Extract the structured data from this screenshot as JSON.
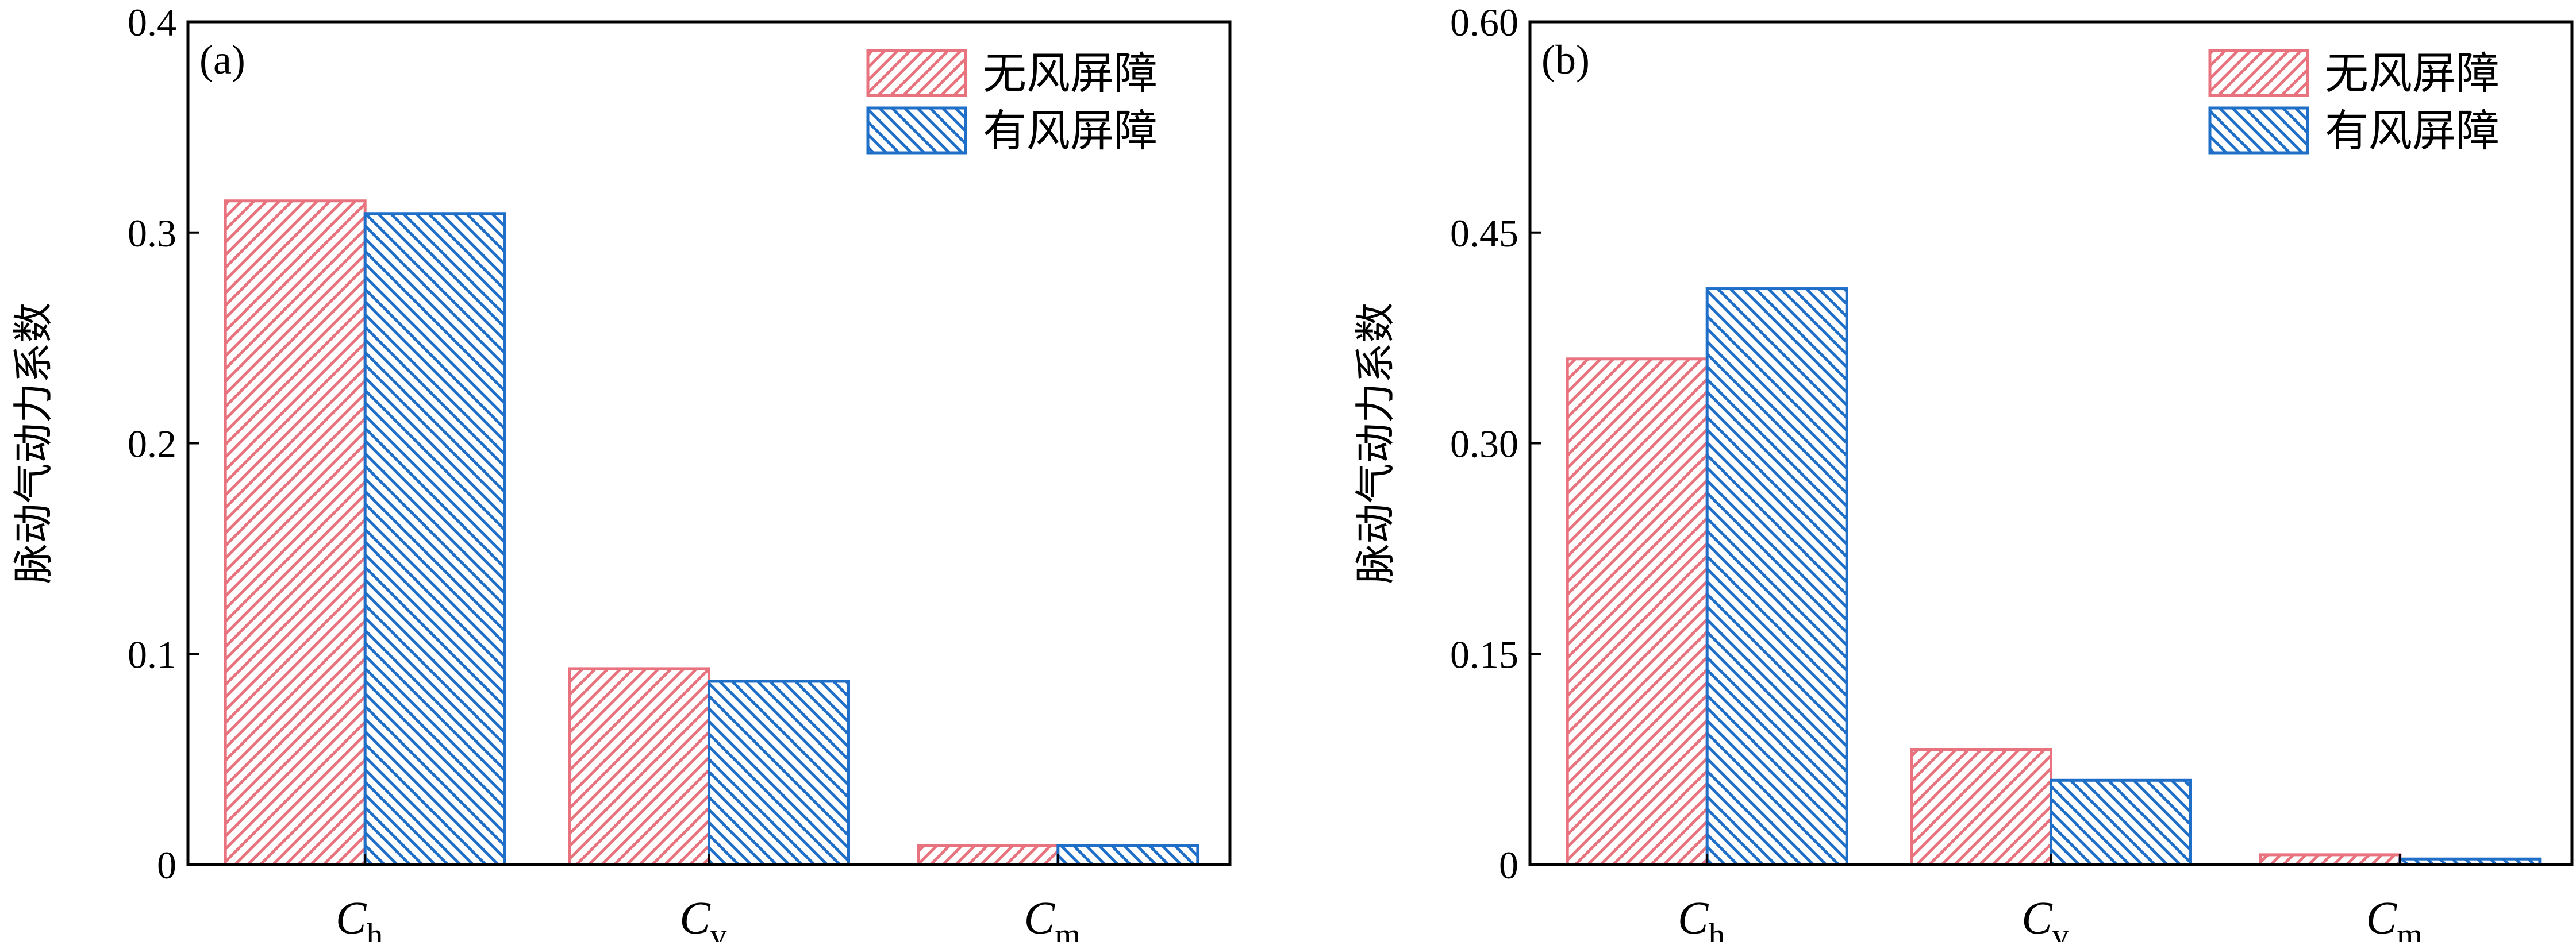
{
  "colors": {
    "no_barrier": "#e8737e",
    "with_barrier": "#1f6fc9",
    "axis": "#000000"
  },
  "chart_data": [
    {
      "type": "bar",
      "panel": "(a)",
      "ylabel": "脉动气动力系数",
      "ylim": [
        0,
        0.4
      ],
      "yticks": [
        "0",
        "0.1",
        "0.2",
        "0.3",
        "0.4"
      ],
      "categories": [
        {
          "main": "C",
          "sub": "h"
        },
        {
          "main": "C",
          "sub": "v"
        },
        {
          "main": "C",
          "sub": "m"
        }
      ],
      "series": [
        {
          "name": "无风屏障",
          "hatch": "forward-diagonal",
          "values": [
            0.315,
            0.093,
            0.009
          ]
        },
        {
          "name": "有风屏障",
          "hatch": "backward-diagonal",
          "values": [
            0.309,
            0.087,
            0.009
          ]
        }
      ],
      "legend": "top-right"
    },
    {
      "type": "bar",
      "panel": "(b)",
      "ylabel": "脉动气动力系数",
      "ylim": [
        0,
        0.6
      ],
      "yticks": [
        "0",
        "0.15",
        "0.30",
        "0.45",
        "0.60"
      ],
      "categories": [
        {
          "main": "C",
          "sub": "h"
        },
        {
          "main": "C",
          "sub": "v"
        },
        {
          "main": "C",
          "sub": "m"
        }
      ],
      "series": [
        {
          "name": "无风屏障",
          "hatch": "forward-diagonal",
          "values": [
            0.36,
            0.082,
            0.007
          ]
        },
        {
          "name": "有风屏障",
          "hatch": "backward-diagonal",
          "values": [
            0.41,
            0.06,
            0.004
          ]
        }
      ],
      "legend": "top-right"
    }
  ]
}
